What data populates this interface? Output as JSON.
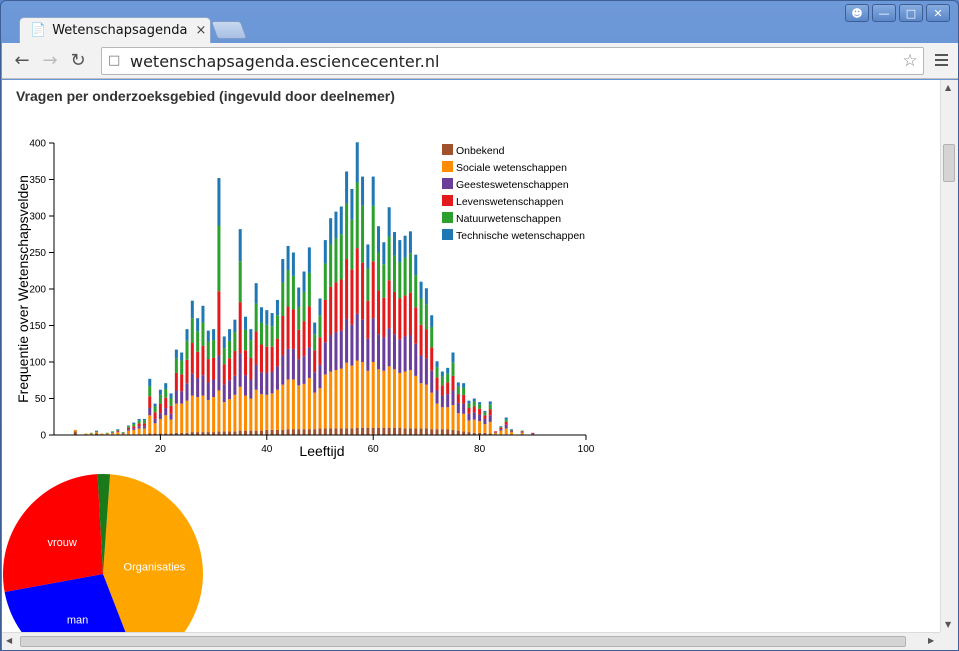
{
  "browser": {
    "tab_title": "Wetenschapsagenda Cr",
    "close_glyph": "×",
    "url": "wetenschapsagenda.esciencecenter.nl"
  },
  "page": {
    "heading": "Vragen per onderzoeksgebied (ingevuld door deelnemer)"
  },
  "colors": {
    "Onbekend": "#a0522d",
    "Sociale wetenschappen": "#ff8c00",
    "Geesteswetenschappen": "#6a3d9a",
    "Levenswetenschappen": "#e31a1c",
    "Natuurwetenschappen": "#2ca02c",
    "Technische wetenschappen": "#1f77b4"
  },
  "chart_data": [
    {
      "type": "bar",
      "stacked": true,
      "xlabel": "Leeftijd",
      "ylabel": "Frequentie over Wetenschapsvelden",
      "xlim": [
        0,
        100
      ],
      "ylim": [
        0,
        400
      ],
      "xticks": [
        20,
        40,
        60,
        80,
        100
      ],
      "yticks": [
        0,
        50,
        100,
        150,
        200,
        250,
        300,
        350,
        400
      ],
      "legend_position": "top-right",
      "series_names": [
        "Onbekend",
        "Sociale wetenschappen",
        "Geesteswetenschappen",
        "Levenswetenschappen",
        "Natuurwetenschappen",
        "Technische wetenschappen"
      ],
      "x": [
        4,
        6,
        7,
        8,
        9,
        10,
        11,
        12,
        13,
        14,
        15,
        16,
        17,
        18,
        19,
        20,
        21,
        22,
        23,
        24,
        25,
        26,
        27,
        28,
        29,
        30,
        31,
        32,
        33,
        34,
        35,
        36,
        37,
        38,
        39,
        40,
        41,
        42,
        43,
        44,
        45,
        46,
        47,
        48,
        49,
        50,
        51,
        52,
        53,
        54,
        55,
        56,
        57,
        58,
        59,
        60,
        61,
        62,
        63,
        64,
        65,
        66,
        67,
        68,
        69,
        70,
        71,
        72,
        73,
        74,
        75,
        76,
        77,
        78,
        79,
        80,
        81,
        82,
        83,
        84,
        85,
        86,
        88,
        90
      ],
      "totals": [
        7,
        2,
        3,
        6,
        2,
        3,
        5,
        8,
        4,
        13,
        17,
        22,
        22,
        77,
        43,
        62,
        71,
        57,
        117,
        113,
        145,
        184,
        160,
        177,
        143,
        145,
        352,
        135,
        145,
        158,
        282,
        162,
        145,
        208,
        175,
        171,
        167,
        185,
        241,
        259,
        250,
        202,
        224,
        257,
        154,
        187,
        267,
        297,
        306,
        313,
        361,
        337,
        401,
        354,
        261,
        354,
        286,
        264,
        312,
        278,
        267,
        273,
        279,
        247,
        210,
        201,
        164,
        101,
        87,
        92,
        113,
        72,
        71,
        47,
        50,
        45,
        33,
        46,
        5,
        12,
        24,
        8,
        6,
        3
      ],
      "series": [
        {
          "name": "Onbekend",
          "values": [
            5,
            1,
            1,
            2,
            1,
            1,
            1,
            1,
            1,
            1,
            1,
            1,
            1,
            2,
            2,
            2,
            2,
            2,
            3,
            3,
            3,
            4,
            4,
            4,
            4,
            4,
            5,
            5,
            5,
            5,
            6,
            6,
            6,
            6,
            6,
            7,
            7,
            7,
            7,
            8,
            8,
            8,
            8,
            8,
            8,
            9,
            9,
            9,
            9,
            9,
            9,
            9,
            10,
            10,
            10,
            10,
            10,
            10,
            10,
            10,
            10,
            9,
            9,
            9,
            9,
            9,
            8,
            8,
            8,
            8,
            7,
            6,
            5,
            4,
            3,
            3,
            3,
            2,
            1,
            1,
            1,
            1,
            1,
            0
          ]
        },
        {
          "name": "Sociale wetenschappen",
          "values": [
            2,
            1,
            1,
            2,
            1,
            1,
            2,
            3,
            1,
            5,
            6,
            8,
            8,
            25,
            14,
            20,
            25,
            19,
            40,
            40,
            44,
            50,
            48,
            50,
            44,
            48,
            56,
            40,
            44,
            50,
            60,
            48,
            44,
            56,
            50,
            48,
            50,
            55,
            62,
            68,
            68,
            60,
            62,
            70,
            50,
            55,
            74,
            78,
            80,
            82,
            90,
            86,
            92,
            90,
            78,
            90,
            80,
            78,
            84,
            80,
            75,
            78,
            80,
            72,
            62,
            60,
            50,
            35,
            30,
            30,
            34,
            24,
            24,
            16,
            18,
            16,
            12,
            16,
            2,
            5,
            8,
            3,
            2,
            1
          ]
        },
        {
          "name": "Geesteswetenschappen",
          "values": [
            0,
            0,
            0,
            1,
            0,
            0,
            1,
            1,
            1,
            2,
            2,
            3,
            3,
            10,
            6,
            8,
            10,
            8,
            18,
            17,
            24,
            30,
            26,
            28,
            24,
            24,
            48,
            24,
            26,
            26,
            46,
            28,
            26,
            34,
            30,
            30,
            30,
            32,
            40,
            42,
            42,
            36,
            38,
            42,
            28,
            32,
            44,
            50,
            52,
            52,
            60,
            56,
            64,
            58,
            44,
            60,
            48,
            46,
            52,
            48,
            46,
            48,
            48,
            44,
            38,
            36,
            30,
            18,
            16,
            18,
            20,
            14,
            14,
            9,
            10,
            9,
            7,
            9,
            1,
            2,
            5,
            1,
            1,
            1
          ]
        },
        {
          "name": "Levenswetenschappen",
          "values": [
            0,
            0,
            0,
            0,
            0,
            0,
            0,
            1,
            0,
            2,
            3,
            4,
            4,
            16,
            9,
            13,
            14,
            11,
            24,
            23,
            32,
            42,
            36,
            40,
            32,
            30,
            88,
            28,
            30,
            34,
            70,
            34,
            30,
            46,
            38,
            36,
            34,
            38,
            54,
            58,
            54,
            40,
            48,
            56,
            30,
            38,
            58,
            66,
            68,
            70,
            82,
            76,
            90,
            78,
            52,
            78,
            60,
            54,
            66,
            58,
            56,
            56,
            58,
            50,
            42,
            40,
            32,
            18,
            14,
            16,
            20,
            12,
            12,
            8,
            8,
            8,
            5,
            8,
            1,
            2,
            4,
            1,
            1,
            1
          ]
        },
        {
          "name": "Natuurwetenschappen",
          "values": [
            0,
            0,
            1,
            1,
            0,
            1,
            1,
            1,
            1,
            2,
            3,
            4,
            4,
            14,
            8,
            12,
            12,
            10,
            20,
            19,
            26,
            34,
            28,
            32,
            24,
            24,
            90,
            22,
            24,
            26,
            56,
            28,
            24,
            38,
            30,
            30,
            28,
            32,
            46,
            50,
            46,
            32,
            40,
            46,
            22,
            30,
            50,
            58,
            60,
            62,
            76,
            68,
            90,
            78,
            44,
            76,
            52,
            46,
            60,
            50,
            50,
            52,
            54,
            44,
            36,
            34,
            28,
            14,
            12,
            12,
            18,
            10,
            10,
            6,
            7,
            6,
            4,
            7,
            0,
            1,
            3,
            1,
            1,
            0
          ]
        },
        {
          "name": "Technische wetenschappen",
          "values": [
            0,
            0,
            0,
            0,
            0,
            0,
            0,
            1,
            0,
            1,
            2,
            2,
            2,
            10,
            4,
            7,
            8,
            7,
            12,
            11,
            16,
            24,
            18,
            23,
            15,
            15,
            65,
            16,
            16,
            17,
            44,
            18,
            15,
            28,
            21,
            20,
            18,
            21,
            32,
            33,
            32,
            26,
            28,
            35,
            16,
            23,
            32,
            36,
            37,
            38,
            44,
            42,
            55,
            40,
            33,
            40,
            36,
            30,
            40,
            32,
            30,
            30,
            30,
            28,
            23,
            22,
            16,
            8,
            7,
            8,
            14,
            6,
            6,
            4,
            4,
            3,
            2,
            4,
            0,
            1,
            3,
            1,
            0,
            0
          ]
        }
      ]
    },
    {
      "type": "pie",
      "slices": [
        {
          "label": "Organisaties",
          "value": 43,
          "color": "#ffa500"
        },
        {
          "label": "man",
          "value": 28,
          "color": "#0000ff"
        },
        {
          "label": "vrouw",
          "value": 27,
          "color": "#ff0000"
        },
        {
          "label": "",
          "value": 2,
          "color": "#1a7a1a"
        }
      ]
    }
  ]
}
